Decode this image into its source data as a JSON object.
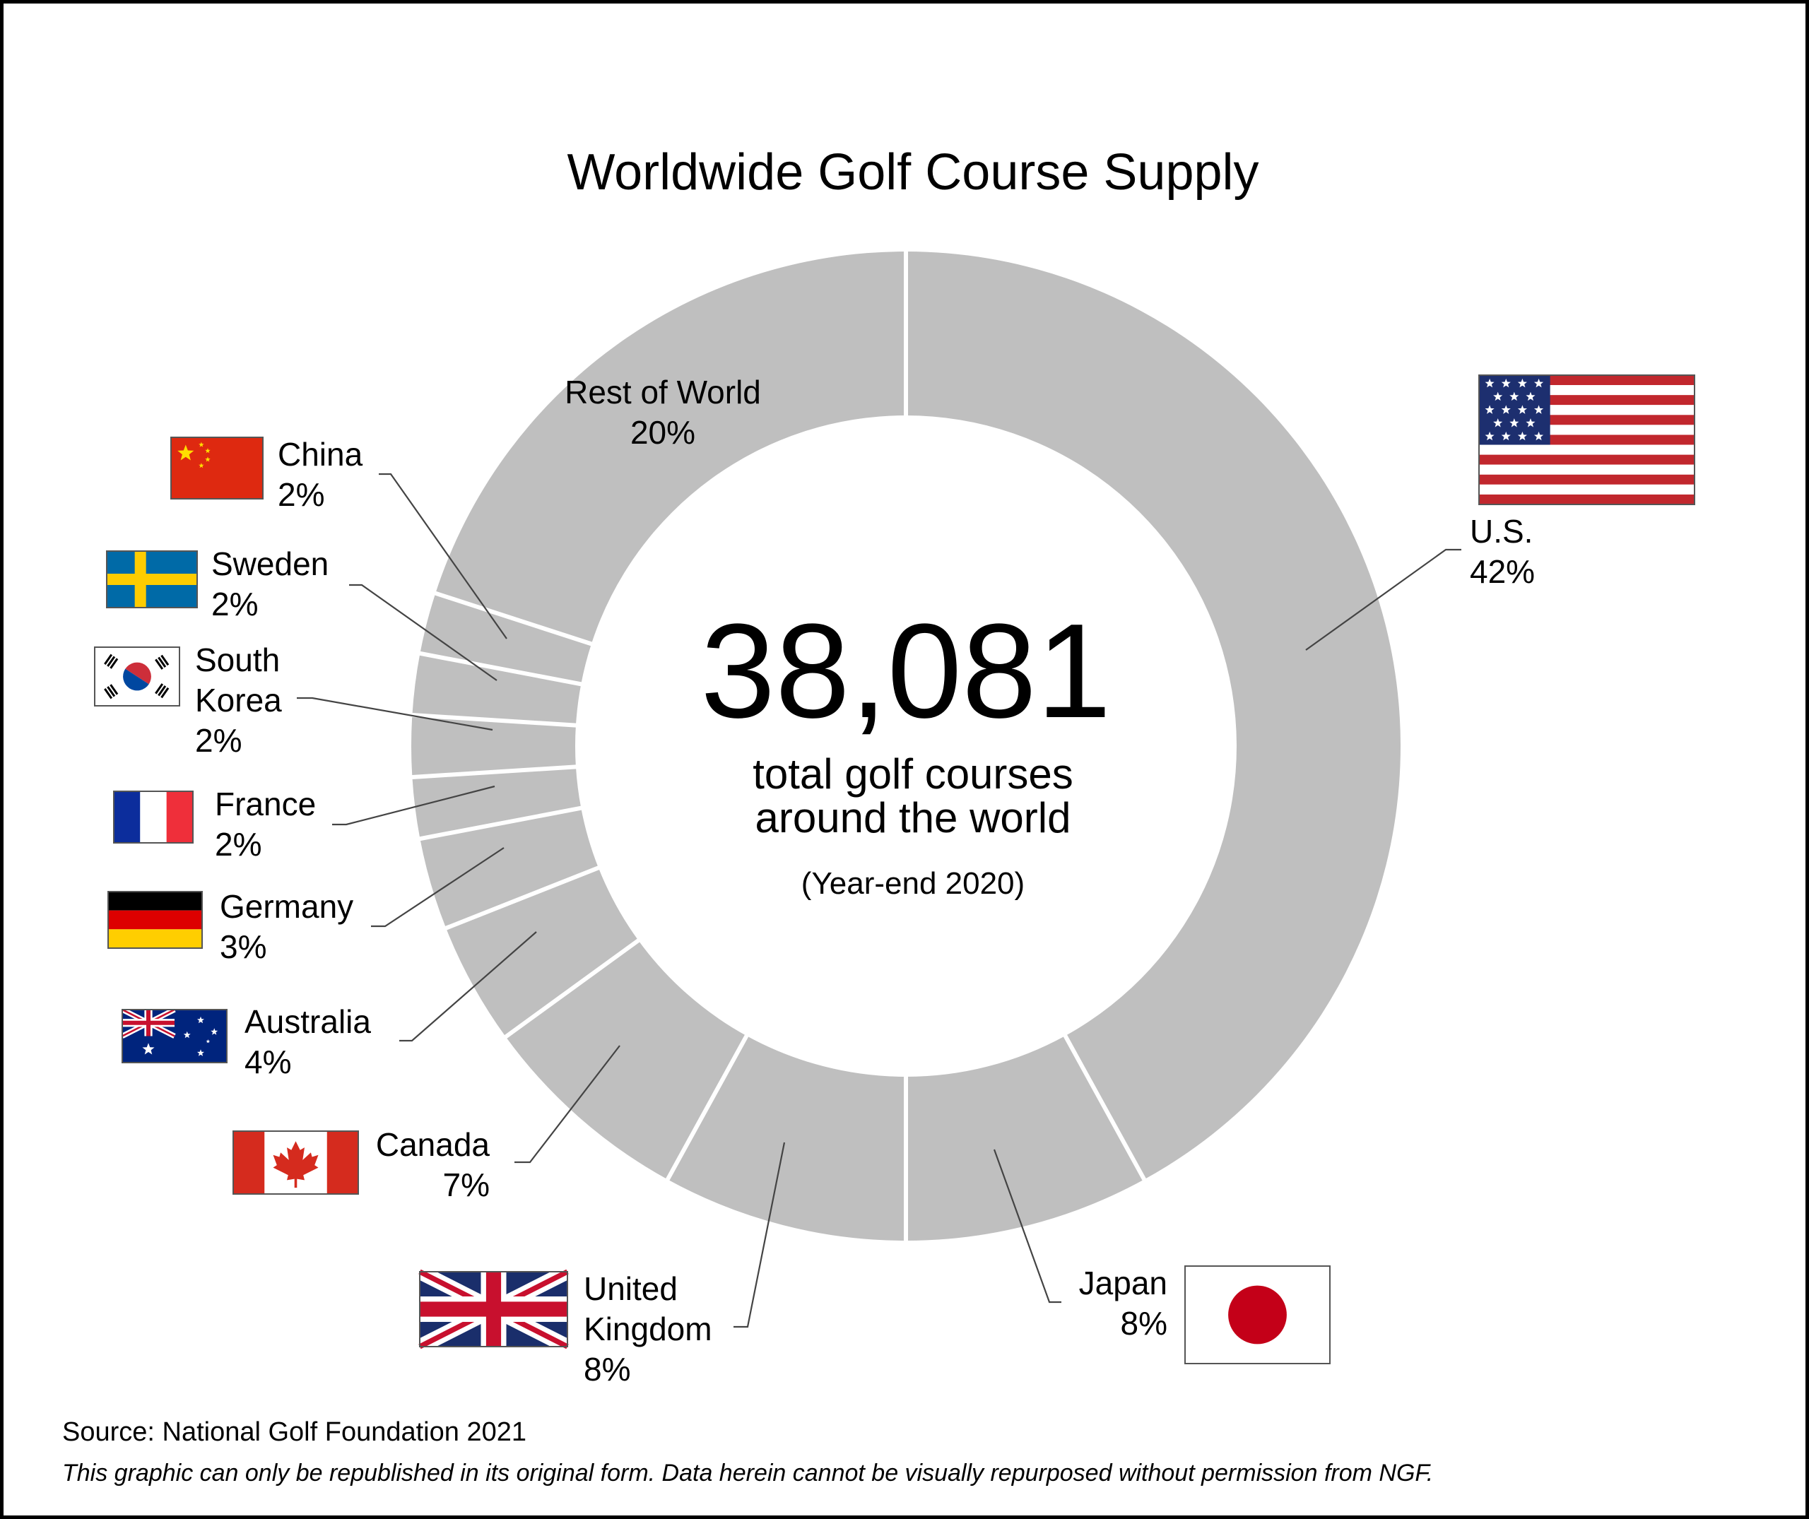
{
  "colors": {
    "slice": "#bfbfbf",
    "separator": "#ffffff",
    "leader": "#444444",
    "flag_red": "#e0202a",
    "flag_blue": "#1f2a6e"
  },
  "chart_data": {
    "type": "pie",
    "title": "Worldwide Golf Course Supply",
    "center": {
      "total": "38,081",
      "caption_line1": "total golf courses",
      "caption_line2": "around the world",
      "note": "(Year-end 2020)"
    },
    "slices": [
      {
        "name_lines": [
          "U.S."
        ],
        "value": 42,
        "label": "42%",
        "flag": "us-flag"
      },
      {
        "name_lines": [
          "Japan"
        ],
        "value": 8,
        "label": "8%",
        "flag": "japan-flag"
      },
      {
        "name_lines": [
          "United",
          "Kingdom"
        ],
        "value": 8,
        "label": "8%",
        "flag": "uk-flag"
      },
      {
        "name_lines": [
          "Canada"
        ],
        "value": 7,
        "label": "7%",
        "flag": "canada-flag"
      },
      {
        "name_lines": [
          "Australia"
        ],
        "value": 4,
        "label": "4%",
        "flag": "australia-flag"
      },
      {
        "name_lines": [
          "Germany"
        ],
        "value": 3,
        "label": "3%",
        "flag": "germany-flag"
      },
      {
        "name_lines": [
          "France"
        ],
        "value": 2,
        "label": "2%",
        "flag": "france-flag"
      },
      {
        "name_lines": [
          "South",
          "Korea"
        ],
        "value": 2,
        "label": "2%",
        "flag": "south-korea-flag"
      },
      {
        "name_lines": [
          "Sweden"
        ],
        "value": 2,
        "label": "2%",
        "flag": "sweden-flag"
      },
      {
        "name_lines": [
          "China"
        ],
        "value": 2,
        "label": "2%",
        "flag": "china-flag"
      },
      {
        "name_lines": [
          "Rest of World"
        ],
        "value": 20,
        "label": "20%",
        "flag": ""
      }
    ]
  },
  "footer": {
    "source": "Source: National Golf Foundation 2021",
    "disclaimer": "This graphic can only be republished in its original form. Data herein cannot be visually repurposed without permission from NGF."
  }
}
